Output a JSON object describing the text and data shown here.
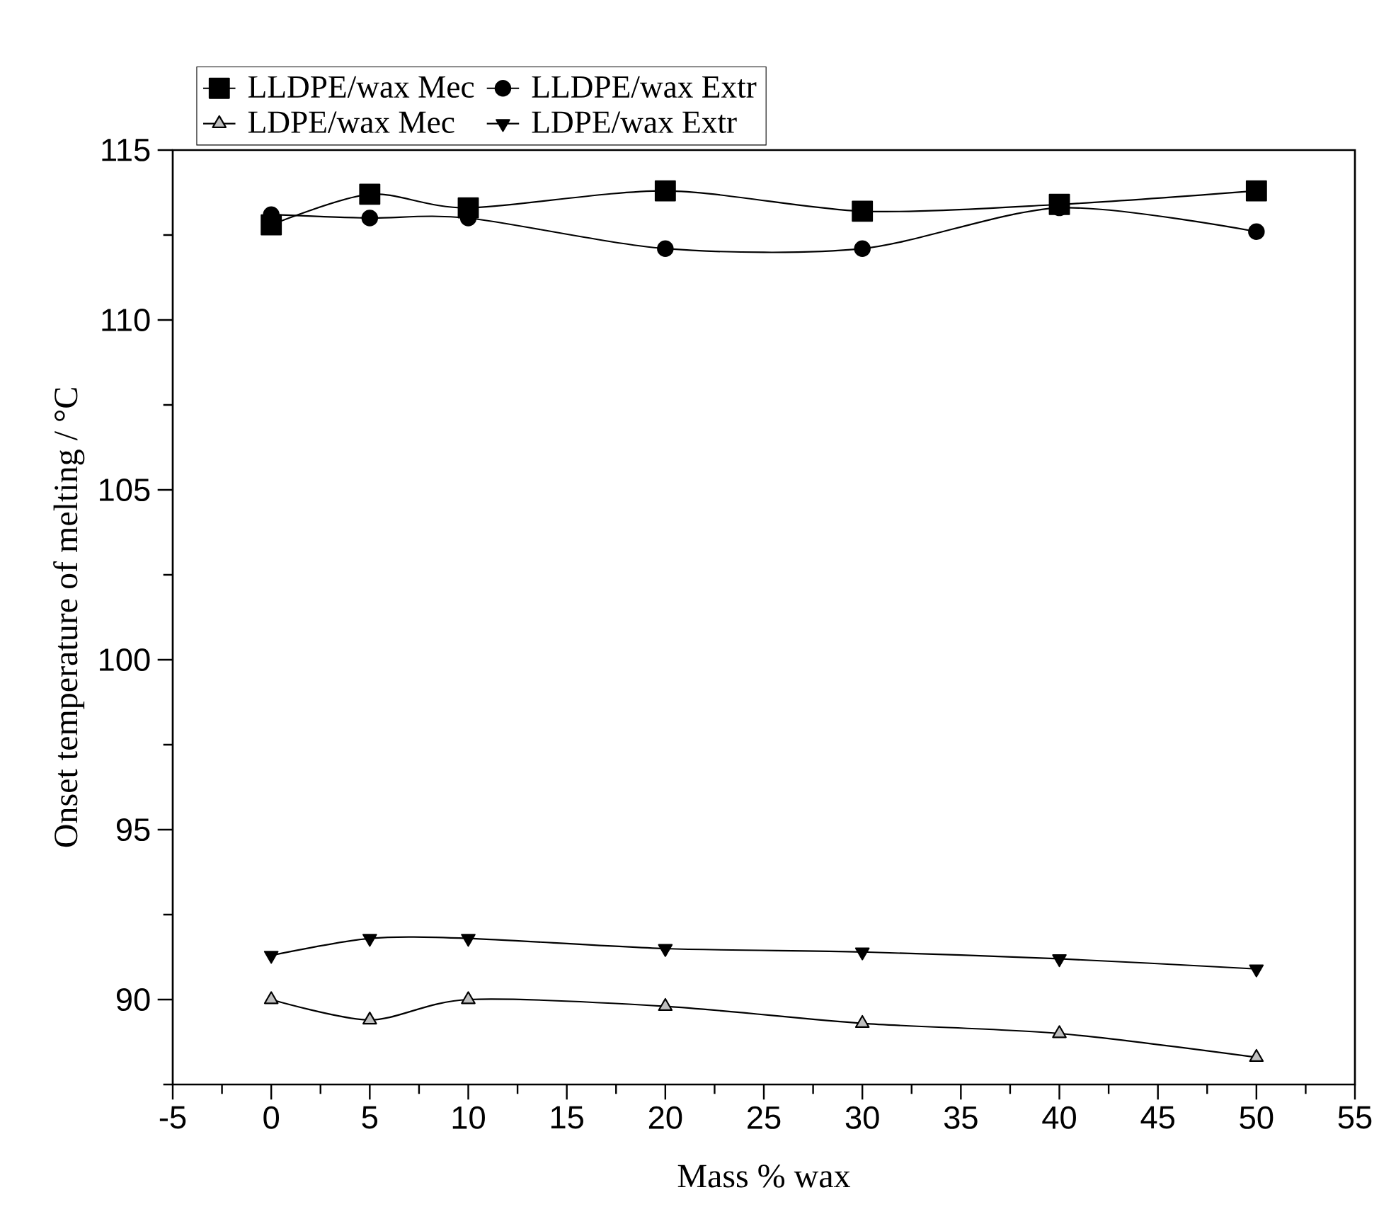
{
  "chart_data": {
    "type": "line",
    "xlabel": "Mass % wax",
    "ylabel": "Onset temperature of melting / °C",
    "xlim": [
      -5,
      55
    ],
    "ylim": [
      87.5,
      115
    ],
    "xticks": [
      -5,
      {
        "value": -2.5,
        "label": null
      },
      0,
      {
        "value": 2.5,
        "label": null
      },
      5,
      {
        "value": 7.5,
        "label": null
      },
      10,
      {
        "value": 12.5,
        "label": null
      },
      15,
      {
        "value": 17.5,
        "label": null
      },
      20,
      {
        "value": 22.5,
        "label": null
      },
      25,
      {
        "value": 27.5,
        "label": null
      },
      30,
      {
        "value": 32.5,
        "label": null
      },
      35,
      {
        "value": 37.5,
        "label": null
      },
      40,
      {
        "value": 42.5,
        "label": null
      },
      45,
      {
        "value": 47.5,
        "label": null
      },
      50,
      {
        "value": 52.5,
        "label": null
      },
      55
    ],
    "yticks": [
      {
        "value": 87.5,
        "label": null
      },
      90,
      {
        "value": 92.5,
        "label": null
      },
      95,
      {
        "value": 97.5,
        "label": null
      },
      100,
      {
        "value": 102.5,
        "label": null
      },
      105,
      {
        "value": 107.5,
        "label": null
      },
      110,
      {
        "value": 112.5,
        "label": null
      },
      115
    ],
    "x": [
      0,
      5,
      10,
      20,
      30,
      40,
      50
    ],
    "grid": false,
    "legend": "top left",
    "series": [
      {
        "name": "LLDPE/wax Mec",
        "color": "#000000",
        "marker": "square",
        "values": [
          112.8,
          113.7,
          113.3,
          113.8,
          113.2,
          113.4,
          113.8
        ]
      },
      {
        "name": "LLDPE/wax Extr",
        "color": "#000000",
        "marker": "circle",
        "values": [
          113.1,
          113.0,
          113.0,
          112.1,
          112.1,
          113.3,
          112.6
        ]
      },
      {
        "name": "LDPE/wax Mec",
        "color": "#000000",
        "marker": "triangle",
        "values": [
          90.0,
          89.4,
          90.0,
          89.8,
          89.3,
          89.0,
          88.3
        ]
      },
      {
        "name": "LDPE/wax Extr",
        "color": "#000000",
        "marker": "triangle-down",
        "values": [
          91.3,
          91.8,
          91.8,
          91.5,
          91.4,
          91.2,
          90.9
        ]
      }
    ]
  }
}
